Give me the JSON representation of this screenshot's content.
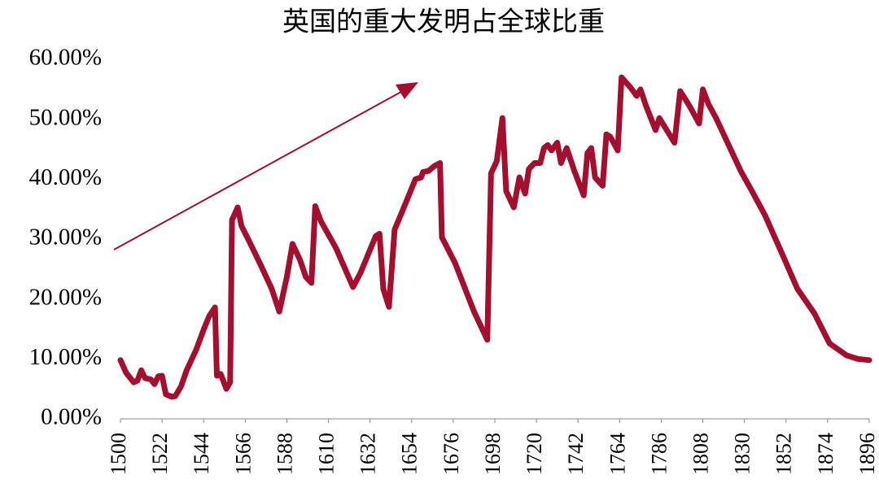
{
  "chart_data": {
    "type": "line",
    "title": "英国的重大发明占全球比重",
    "color": "#a50f2d",
    "x": [
      1500,
      1503,
      1507,
      1509,
      1511,
      1513,
      1516,
      1518,
      1520,
      1522,
      1524,
      1527,
      1529,
      1532,
      1535,
      1540,
      1544,
      1547,
      1550,
      1551,
      1553,
      1556,
      1558,
      1559,
      1562,
      1564,
      1568,
      1574,
      1580,
      1584,
      1588,
      1591,
      1595,
      1598,
      1601,
      1603,
      1606,
      1614,
      1623,
      1627,
      1635,
      1637,
      1639,
      1642,
      1645,
      1649,
      1656,
      1659,
      1660,
      1663,
      1666,
      1669,
      1670,
      1677,
      1687,
      1694,
      1696,
      1699,
      1702,
      1704,
      1708,
      1711,
      1714,
      1716,
      1719,
      1722,
      1724,
      1726,
      1728,
      1731,
      1733,
      1736,
      1740,
      1745,
      1747,
      1749,
      1751,
      1755,
      1757,
      1759,
      1763,
      1765,
      1770,
      1773,
      1775,
      1778,
      1783,
      1785,
      1793,
      1796,
      1801,
      1806,
      1808,
      1811,
      1815,
      1828,
      1834,
      1841,
      1850,
      1858,
      1867,
      1875,
      1884,
      1890,
      1896
    ],
    "values": [
      9.8,
      7.7,
      6.1,
      6.4,
      8.1,
      6.8,
      6.6,
      5.8,
      7.1,
      7.2,
      4.1,
      3.7,
      3.8,
      5.4,
      8.1,
      11.5,
      14.9,
      17.2,
      18.6,
      7.2,
      7.5,
      5.0,
      6.1,
      33.2,
      35.3,
      32.2,
      29.7,
      25.8,
      21.7,
      17.9,
      23.7,
      29.2,
      26.5,
      23.7,
      22.7,
      35.5,
      33.0,
      28.5,
      22.0,
      24.4,
      30.5,
      30.9,
      21.7,
      18.7,
      31.6,
      34.6,
      40.0,
      40.3,
      41.2,
      41.4,
      42.2,
      42.7,
      30.3,
      26.0,
      17.9,
      13.2,
      41.0,
      43.0,
      50.2,
      38.0,
      35.3,
      40.3,
      37.6,
      41.7,
      42.7,
      42.7,
      45.2,
      45.7,
      44.8,
      46.1,
      42.7,
      45.2,
      41.4,
      37.3,
      44.4,
      45.2,
      40.3,
      38.9,
      47.5,
      47.1,
      44.8,
      57.0,
      55.2,
      53.9,
      55.0,
      52.2,
      48.2,
      50.2,
      46.1,
      54.7,
      52.2,
      49.3,
      55.0,
      52.5,
      50.2,
      41.4,
      38.0,
      33.9,
      27.5,
      21.7,
      17.6,
      12.6,
      10.6,
      10.0,
      9.8
    ],
    "xlim": [
      1500,
      1896
    ],
    "xticks": [
      1500,
      1522,
      1544,
      1566,
      1588,
      1610,
      1632,
      1654,
      1676,
      1698,
      1720,
      1742,
      1764,
      1786,
      1808,
      1830,
      1852,
      1874,
      1896
    ],
    "ylim": [
      0,
      60
    ],
    "yticks": [
      {
        "value": 0,
        "label": "0.00%"
      },
      {
        "value": 10,
        "label": "10.00%"
      },
      {
        "value": 20,
        "label": "20.00%"
      },
      {
        "value": 30,
        "label": "30.00%"
      },
      {
        "value": 40,
        "label": "40.00%"
      },
      {
        "value": 50,
        "label": "50.00%"
      },
      {
        "value": 60,
        "label": "60.00%"
      }
    ],
    "grid": false
  }
}
